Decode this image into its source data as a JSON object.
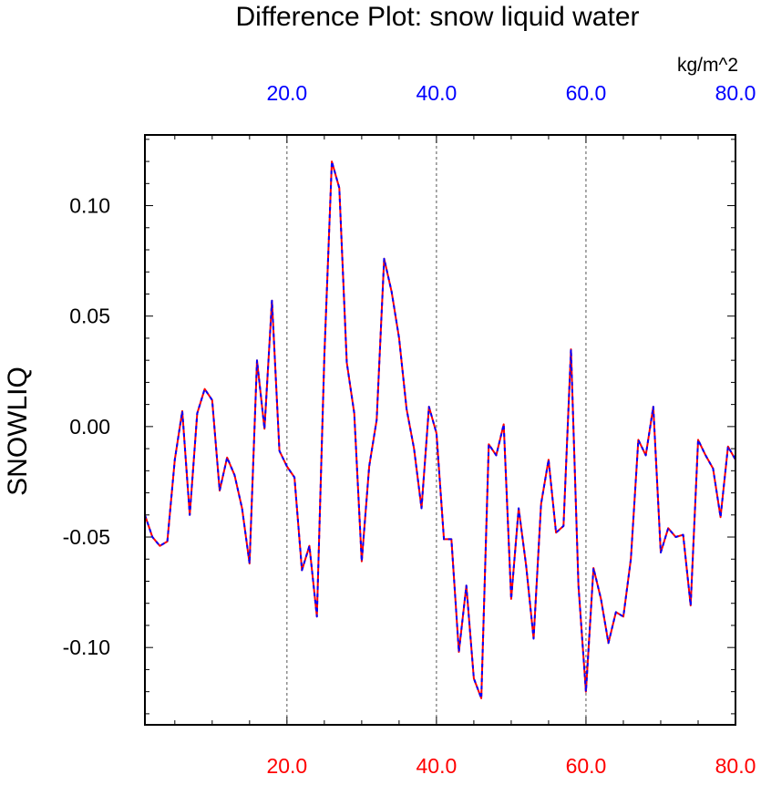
{
  "chart_data": {
    "type": "line",
    "title": "Difference Plot: snow liquid water",
    "ylabel": "SNOWLIQ",
    "units_label": "kg/m^2",
    "xlim": [
      1,
      80
    ],
    "ylim": [
      -0.135,
      0.132
    ],
    "x_ticks_top": [
      "20.0",
      "40.0",
      "60.0",
      "80.0"
    ],
    "x_ticks_bottom": [
      "20.0",
      "40.0",
      "60.0",
      "80.0"
    ],
    "x_tick_values": [
      20,
      40,
      60,
      80
    ],
    "y_ticks": [
      "0.10",
      "0.05",
      "0.00",
      "-0.05",
      "-0.10"
    ],
    "y_tick_values": [
      0.1,
      0.05,
      0.0,
      -0.05,
      -0.1
    ],
    "vertical_gridlines_at": [
      20,
      40,
      60
    ],
    "colors": {
      "series_a": "#ff0000",
      "series_b": "#0000ff",
      "top_axis_text": "#0000ff",
      "bottom_axis_text": "#ff0000",
      "grid": "#555555"
    },
    "series": [
      {
        "name": "difference",
        "x": [
          1,
          2,
          3,
          4,
          5,
          6,
          7,
          8,
          9,
          10,
          11,
          12,
          13,
          14,
          15,
          16,
          17,
          18,
          19,
          20,
          21,
          22,
          23,
          24,
          25,
          26,
          27,
          28,
          29,
          30,
          31,
          32,
          33,
          34,
          35,
          36,
          37,
          38,
          39,
          40,
          41,
          42,
          43,
          44,
          45,
          46,
          47,
          48,
          49,
          50,
          51,
          52,
          53,
          54,
          55,
          56,
          57,
          58,
          59,
          60,
          61,
          62,
          63,
          64,
          65,
          66,
          67,
          68,
          69,
          70,
          71,
          72,
          73,
          74,
          75,
          76,
          77,
          78,
          79,
          80
        ],
        "values": [
          -0.04,
          -0.05,
          -0.054,
          -0.052,
          -0.015,
          0.007,
          -0.04,
          0.006,
          0.017,
          0.012,
          -0.029,
          -0.014,
          -0.022,
          -0.037,
          -0.062,
          0.03,
          -0.001,
          0.057,
          -0.011,
          -0.018,
          -0.023,
          -0.065,
          -0.054,
          -0.086,
          0.032,
          0.12,
          0.108,
          0.029,
          0.006,
          -0.061,
          -0.018,
          0.003,
          0.076,
          0.061,
          0.04,
          0.008,
          -0.01,
          -0.037,
          0.009,
          -0.003,
          -0.051,
          -0.051,
          -0.102,
          -0.072,
          -0.114,
          -0.123,
          -0.008,
          -0.013,
          0.001,
          -0.078,
          -0.037,
          -0.063,
          -0.096,
          -0.035,
          -0.015,
          -0.048,
          -0.045,
          0.035,
          -0.072,
          -0.12,
          -0.064,
          -0.078,
          -0.098,
          -0.084,
          -0.086,
          -0.06,
          -0.006,
          -0.013,
          0.009,
          -0.057,
          -0.046,
          -0.05,
          -0.049,
          -0.081,
          -0.006,
          -0.013,
          -0.019,
          -0.041,
          -0.009,
          -0.015
        ]
      }
    ]
  }
}
